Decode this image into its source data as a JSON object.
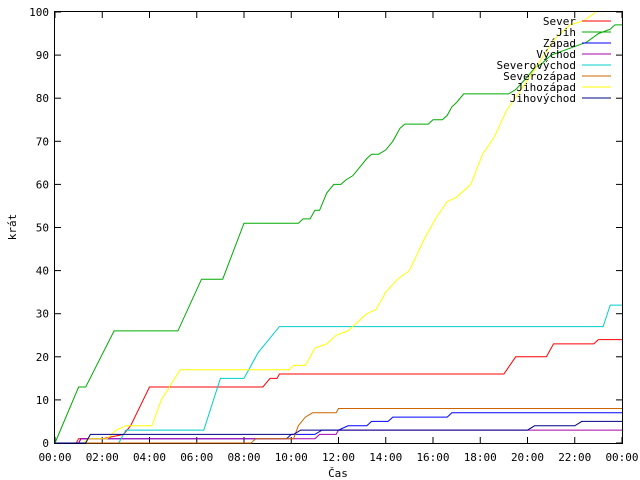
{
  "chart_data": {
    "type": "line",
    "title": "",
    "xlabel": "Čas",
    "ylabel": "krát",
    "xlim": [
      0,
      24
    ],
    "ylim": [
      0,
      100
    ],
    "x_ticks": [
      "00:00",
      "02:00",
      "04:00",
      "06:00",
      "08:00",
      "10:00",
      "12:00",
      "14:00",
      "16:00",
      "18:00",
      "20:00",
      "22:00",
      "00:00"
    ],
    "y_ticks": [
      0,
      10,
      20,
      30,
      40,
      50,
      60,
      70,
      80,
      90,
      100
    ],
    "grid": false,
    "legend_position": "top-right",
    "series": [
      {
        "name": "Sever",
        "color": "#ff0000",
        "points": [
          [
            0,
            0
          ],
          [
            0.9,
            0
          ],
          [
            1.0,
            1
          ],
          [
            2.0,
            1
          ],
          [
            2.9,
            2
          ],
          [
            3.2,
            4
          ],
          [
            4.0,
            13
          ],
          [
            7.0,
            13
          ],
          [
            8.8,
            13
          ],
          [
            9.1,
            15
          ],
          [
            9.4,
            15
          ],
          [
            9.5,
            16
          ],
          [
            10.0,
            16
          ],
          [
            19.0,
            16
          ],
          [
            19.5,
            20
          ],
          [
            20.8,
            20
          ],
          [
            21.1,
            23
          ],
          [
            22.8,
            23
          ],
          [
            23.0,
            24
          ],
          [
            24,
            24
          ]
        ]
      },
      {
        "name": "Jih",
        "color": "#00aa00",
        "points": [
          [
            0,
            0
          ],
          [
            1.0,
            13
          ],
          [
            1.3,
            13
          ],
          [
            2.5,
            26
          ],
          [
            5.2,
            26
          ],
          [
            6.2,
            38
          ],
          [
            7.1,
            38
          ],
          [
            8.0,
            51
          ],
          [
            10.3,
            51
          ],
          [
            10.5,
            52
          ],
          [
            10.8,
            52
          ],
          [
            11.0,
            54
          ],
          [
            11.2,
            54
          ],
          [
            11.5,
            58
          ],
          [
            11.8,
            60
          ],
          [
            12.1,
            60
          ],
          [
            12.3,
            61
          ],
          [
            12.6,
            62
          ],
          [
            12.9,
            64
          ],
          [
            13.2,
            66
          ],
          [
            13.4,
            67
          ],
          [
            13.7,
            67
          ],
          [
            14.0,
            68
          ],
          [
            14.3,
            70
          ],
          [
            14.6,
            73
          ],
          [
            14.8,
            74
          ],
          [
            15.8,
            74
          ],
          [
            16.0,
            75
          ],
          [
            16.4,
            75
          ],
          [
            16.6,
            76
          ],
          [
            16.8,
            78
          ],
          [
            17.0,
            79
          ],
          [
            17.3,
            81
          ],
          [
            19.2,
            81
          ],
          [
            19.5,
            82
          ],
          [
            20.0,
            85
          ],
          [
            20.3,
            87
          ],
          [
            20.6,
            88
          ],
          [
            21.0,
            90
          ],
          [
            21.5,
            91
          ],
          [
            22.5,
            93
          ],
          [
            23.0,
            95
          ],
          [
            23.5,
            96
          ],
          [
            23.7,
            97
          ],
          [
            24,
            97
          ]
        ]
      },
      {
        "name": "Západ",
        "color": "#0000ff",
        "points": [
          [
            0,
            0
          ],
          [
            1.0,
            0
          ],
          [
            1.1,
            1
          ],
          [
            9.8,
            1
          ],
          [
            10.0,
            2
          ],
          [
            11.0,
            2
          ],
          [
            11.3,
            3
          ],
          [
            12.0,
            3
          ],
          [
            12.4,
            4
          ],
          [
            13.2,
            4
          ],
          [
            13.4,
            5
          ],
          [
            14.1,
            5
          ],
          [
            14.3,
            6
          ],
          [
            16.6,
            6
          ],
          [
            16.8,
            7
          ],
          [
            24,
            7
          ]
        ]
      },
      {
        "name": "Východ",
        "color": "#aa00aa",
        "points": [
          [
            0,
            0
          ],
          [
            1.0,
            0
          ],
          [
            1.1,
            1
          ],
          [
            11.0,
            1
          ],
          [
            11.2,
            2
          ],
          [
            11.9,
            2
          ],
          [
            12.0,
            3
          ],
          [
            24,
            3
          ]
        ]
      },
      {
        "name": "Severovýchod",
        "color": "#00cccc",
        "points": [
          [
            0,
            0
          ],
          [
            2.7,
            0
          ],
          [
            2.9,
            2
          ],
          [
            3.0,
            3
          ],
          [
            6.3,
            3
          ],
          [
            7.0,
            15
          ],
          [
            8.0,
            15
          ],
          [
            8.6,
            21
          ],
          [
            9.5,
            27
          ],
          [
            23.2,
            27
          ],
          [
            23.5,
            32
          ],
          [
            24,
            32
          ]
        ]
      },
      {
        "name": "Severozápad",
        "color": "#cc6600",
        "points": [
          [
            0,
            0
          ],
          [
            8.3,
            0
          ],
          [
            8.5,
            1
          ],
          [
            10.1,
            1
          ],
          [
            10.3,
            4
          ],
          [
            10.6,
            6
          ],
          [
            10.9,
            7
          ],
          [
            11.9,
            7
          ],
          [
            12.0,
            8
          ],
          [
            24,
            8
          ]
        ]
      },
      {
        "name": "Jihozápad",
        "color": "#ffff00",
        "points": [
          [
            0,
            0
          ],
          [
            1.2,
            0
          ],
          [
            1.4,
            1
          ],
          [
            2.2,
            1
          ],
          [
            2.6,
            3
          ],
          [
            3.0,
            4
          ],
          [
            4.1,
            4
          ],
          [
            4.5,
            10
          ],
          [
            5.3,
            17
          ],
          [
            9.9,
            17
          ],
          [
            10.1,
            18
          ],
          [
            10.6,
            18
          ],
          [
            11.0,
            22
          ],
          [
            11.5,
            23
          ],
          [
            11.9,
            25
          ],
          [
            12.4,
            26
          ],
          [
            12.8,
            28
          ],
          [
            13.2,
            30
          ],
          [
            13.6,
            31
          ],
          [
            14.0,
            35
          ],
          [
            14.5,
            38
          ],
          [
            15.0,
            40
          ],
          [
            15.6,
            47
          ],
          [
            16.1,
            52
          ],
          [
            16.6,
            56
          ],
          [
            17.0,
            57
          ],
          [
            17.6,
            60
          ],
          [
            18.1,
            67
          ],
          [
            18.6,
            71
          ],
          [
            19.1,
            77
          ],
          [
            19.6,
            81
          ],
          [
            20.1,
            85
          ],
          [
            20.7,
            90
          ],
          [
            21.2,
            94
          ],
          [
            21.8,
            97
          ],
          [
            22.4,
            98
          ],
          [
            22.9,
            100
          ]
        ]
      },
      {
        "name": "Jihovýchod",
        "color": "#000088",
        "points": [
          [
            0,
            0
          ],
          [
            1.3,
            0
          ],
          [
            1.5,
            2
          ],
          [
            10.1,
            2
          ],
          [
            10.4,
            3
          ],
          [
            20.0,
            3
          ],
          [
            20.3,
            4
          ],
          [
            22.0,
            4
          ],
          [
            22.3,
            5
          ],
          [
            24,
            5
          ]
        ]
      }
    ]
  }
}
